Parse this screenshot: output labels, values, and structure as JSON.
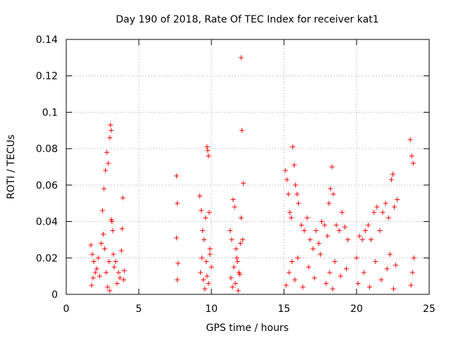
{
  "chart_data": {
    "type": "scatter",
    "title": "Day 190 of 2018, Rate Of TEC Index for receiver kat1",
    "xlabel": "GPS time / hours",
    "ylabel": "ROTI / TECUs",
    "xlim": [
      0,
      25
    ],
    "ylim": [
      0,
      0.14
    ],
    "xticks": [
      0,
      5,
      10,
      15,
      20,
      25
    ],
    "xtick_labels": [
      "0",
      "5",
      "10",
      "15",
      "20",
      "25"
    ],
    "yticks": [
      0,
      0.02,
      0.04,
      0.06,
      0.08,
      0.1,
      0.12,
      0.14
    ],
    "ytick_labels": [
      "0",
      "0.02",
      "0.04",
      "0.06",
      "0.08",
      "0.1",
      "0.12",
      "0.14"
    ],
    "grid": true,
    "marker": "+",
    "color": "#ff0000",
    "series": [
      {
        "name": "kat1",
        "x": [
          1.7,
          1.8,
          1.9,
          2.0,
          2.2,
          2.4,
          2.5,
          2.6,
          2.7,
          2.8,
          2.9,
          3.0,
          3.05,
          3.1,
          3.15,
          3.2,
          3.3,
          3.4,
          3.6,
          3.8,
          3.9,
          4.0,
          1.75,
          1.85,
          2.1,
          2.3,
          2.55,
          2.65,
          2.75,
          2.85,
          2.95,
          3.0,
          3.1,
          3.25,
          3.5,
          3.7,
          3.85,
          3.95,
          7.6,
          7.65,
          7.6,
          7.7,
          7.65,
          9.2,
          9.3,
          9.4,
          9.5,
          9.6,
          9.7,
          9.75,
          9.8,
          9.85,
          9.9,
          10.0,
          9.25,
          9.35,
          9.45,
          9.55,
          9.65,
          9.7,
          9.8,
          9.9,
          11.3,
          11.4,
          11.5,
          11.6,
          11.7,
          11.8,
          11.9,
          12.0,
          12.05,
          12.1,
          12.2,
          11.35,
          11.45,
          11.55,
          11.65,
          11.75,
          11.85,
          11.95,
          12.15,
          12.05,
          15.1,
          15.2,
          15.3,
          15.4,
          15.5,
          15.6,
          15.7,
          15.8,
          15.9,
          16.0,
          16.2,
          16.4,
          16.6,
          16.8,
          17.0,
          17.2,
          17.4,
          17.6,
          17.8,
          18.0,
          18.1,
          18.2,
          18.3,
          18.4,
          18.6,
          18.8,
          19.0,
          19.2,
          19.4,
          15.15,
          15.35,
          15.55,
          15.75,
          15.95,
          16.3,
          16.7,
          17.1,
          17.5,
          17.9,
          18.15,
          18.35,
          18.5,
          18.9,
          19.3,
          20.0,
          20.2,
          20.4,
          20.6,
          20.8,
          21.0,
          21.2,
          21.4,
          21.6,
          21.8,
          22.0,
          22.2,
          22.4,
          22.5,
          22.6,
          22.8,
          23.7,
          23.8,
          23.9,
          20.1,
          20.5,
          20.9,
          21.3,
          21.7,
          22.1,
          22.3,
          22.55,
          22.7,
          23.75,
          23.85,
          23.95
        ],
        "y": [
          0.027,
          0.022,
          0.018,
          0.012,
          0.02,
          0.028,
          0.046,
          0.058,
          0.068,
          0.078,
          0.072,
          0.086,
          0.093,
          0.09,
          0.04,
          0.035,
          0.015,
          0.018,
          0.012,
          0.024,
          0.053,
          0.013,
          0.005,
          0.009,
          0.014,
          0.01,
          0.033,
          0.025,
          0.012,
          0.004,
          0.018,
          0.002,
          0.041,
          0.022,
          0.006,
          0.009,
          0.036,
          0.008,
          0.065,
          0.05,
          0.031,
          0.017,
          0.008,
          0.054,
          0.046,
          0.035,
          0.03,
          0.042,
          0.081,
          0.079,
          0.076,
          0.045,
          0.025,
          0.015,
          0.012,
          0.02,
          0.008,
          0.003,
          0.018,
          0.01,
          0.006,
          0.022,
          0.035,
          0.03,
          0.052,
          0.048,
          0.025,
          0.018,
          0.012,
          0.028,
          0.13,
          0.09,
          0.061,
          0.009,
          0.004,
          0.015,
          0.006,
          0.02,
          0.002,
          0.011,
          0.03,
          0.042,
          0.068,
          0.063,
          0.055,
          0.045,
          0.042,
          0.081,
          0.071,
          0.06,
          0.055,
          0.05,
          0.038,
          0.035,
          0.042,
          0.03,
          0.025,
          0.035,
          0.028,
          0.04,
          0.038,
          0.032,
          0.05,
          0.058,
          0.07,
          0.055,
          0.038,
          0.035,
          0.045,
          0.037,
          0.03,
          0.005,
          0.012,
          0.018,
          0.008,
          0.02,
          0.004,
          0.015,
          0.009,
          0.022,
          0.006,
          0.012,
          0.003,
          0.018,
          0.01,
          0.014,
          0.02,
          0.032,
          0.03,
          0.035,
          0.038,
          0.03,
          0.045,
          0.048,
          0.035,
          0.045,
          0.05,
          0.042,
          0.063,
          0.066,
          0.048,
          0.052,
          0.085,
          0.076,
          0.072,
          0.006,
          0.012,
          0.004,
          0.018,
          0.008,
          0.014,
          0.022,
          0.003,
          0.016,
          0.005,
          0.012,
          0.02
        ]
      }
    ]
  }
}
